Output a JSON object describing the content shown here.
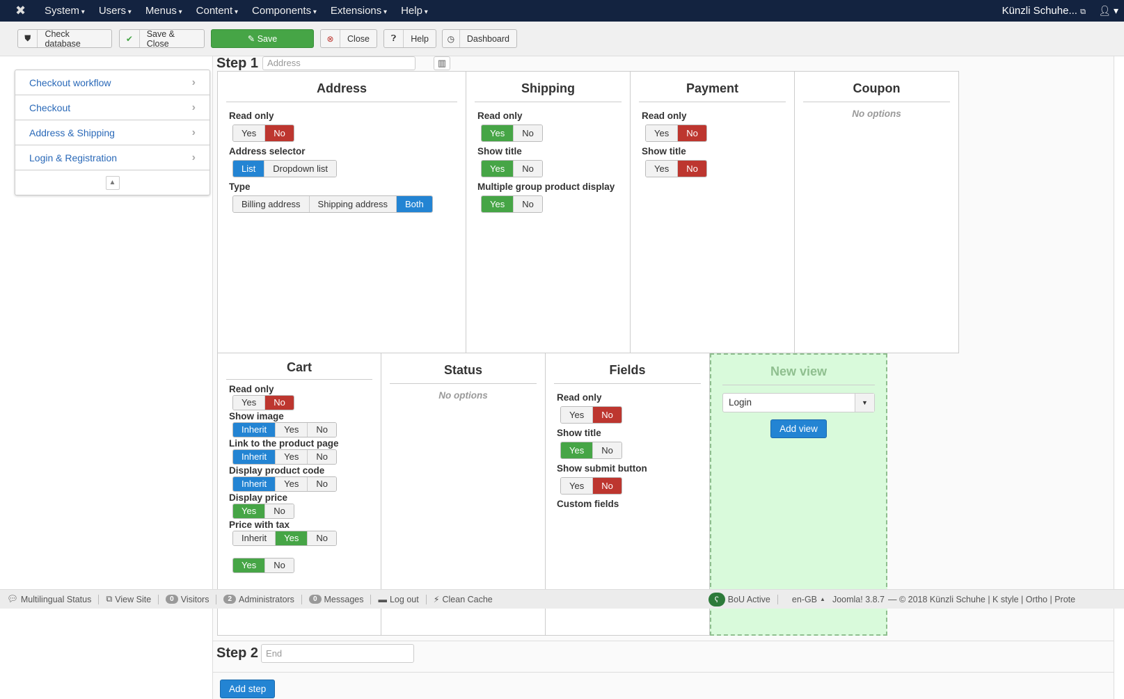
{
  "nav": {
    "menu": [
      "System",
      "Users",
      "Menus",
      "Content",
      "Components",
      "Extensions",
      "Help"
    ],
    "site": "Künzli Schuhe...",
    "site_icon": "external-link-icon",
    "user_icon": "user-icon"
  },
  "toolbar": {
    "check_database": "Check database",
    "save_close": "Save & Close",
    "save": "Save",
    "close": "Close",
    "help": "Help",
    "dashboard": "Dashboard"
  },
  "sidebar": {
    "items": [
      "Checkout workflow",
      "Checkout",
      "Address & Shipping",
      "Login & Registration"
    ]
  },
  "step1": {
    "label": "Step 1",
    "placeholder": "Address"
  },
  "cards": [
    {
      "title": "Address",
      "options": [
        {
          "label": "Read only",
          "buttons": [
            {
              "t": "Yes"
            },
            {
              "t": "No",
              "c": "red"
            }
          ]
        },
        {
          "label": "Address selector",
          "buttons": [
            {
              "t": "List",
              "c": "blue"
            },
            {
              "t": "Dropdown list"
            }
          ]
        },
        {
          "label": "Type",
          "buttons": [
            {
              "t": "Billing address"
            },
            {
              "t": "Shipping address"
            },
            {
              "t": "Both",
              "c": "blue"
            }
          ]
        }
      ]
    },
    {
      "title": "Shipping",
      "options": [
        {
          "label": "Read only",
          "buttons": [
            {
              "t": "Yes",
              "c": "green"
            },
            {
              "t": "No"
            }
          ]
        },
        {
          "label": "Show title",
          "buttons": [
            {
              "t": "Yes",
              "c": "green"
            },
            {
              "t": "No"
            }
          ]
        },
        {
          "label": "Multiple group product display",
          "buttons": [
            {
              "t": "Yes",
              "c": "green"
            },
            {
              "t": "No"
            }
          ]
        }
      ]
    },
    {
      "title": "Payment",
      "options": [
        {
          "label": "Read only",
          "buttons": [
            {
              "t": "Yes"
            },
            {
              "t": "No",
              "c": "red"
            }
          ]
        },
        {
          "label": "Show title",
          "buttons": [
            {
              "t": "Yes"
            },
            {
              "t": "No",
              "c": "red"
            }
          ]
        }
      ]
    },
    {
      "title": "Coupon",
      "no_options": "No options",
      "options": []
    },
    {
      "title": "Cart",
      "options": [
        {
          "label": "Read only",
          "buttons": [
            {
              "t": "Yes"
            },
            {
              "t": "No",
              "c": "red"
            }
          ]
        },
        {
          "label": "Show image",
          "buttons": [
            {
              "t": "Inherit",
              "c": "blue"
            },
            {
              "t": "Yes"
            },
            {
              "t": "No"
            }
          ]
        },
        {
          "label": "Link to the product page",
          "buttons": [
            {
              "t": "Inherit",
              "c": "blue"
            },
            {
              "t": "Yes"
            },
            {
              "t": "No"
            }
          ]
        },
        {
          "label": "Display product code",
          "buttons": [
            {
              "t": "Inherit",
              "c": "blue"
            },
            {
              "t": "Yes"
            },
            {
              "t": "No"
            }
          ]
        },
        {
          "label": "Display price",
          "buttons": [
            {
              "t": "Yes",
              "c": "green"
            },
            {
              "t": "No"
            }
          ]
        },
        {
          "label": "Price with tax",
          "buttons": [
            {
              "t": "Inherit"
            },
            {
              "t": "Yes",
              "c": "green"
            },
            {
              "t": "No"
            }
          ]
        },
        {
          "label": "",
          "buttons": [
            {
              "t": "Yes",
              "c": "green"
            },
            {
              "t": "No"
            }
          ]
        }
      ]
    },
    {
      "title": "Status",
      "no_options": "No options",
      "options": []
    },
    {
      "title": "Fields",
      "options": [
        {
          "label": "Read only",
          "buttons": [
            {
              "t": "Yes"
            },
            {
              "t": "No",
              "c": "red"
            }
          ]
        },
        {
          "label": "Show title",
          "buttons": [
            {
              "t": "Yes",
              "c": "green"
            },
            {
              "t": "No"
            }
          ]
        },
        {
          "label": "Show submit button",
          "buttons": [
            {
              "t": "Yes"
            },
            {
              "t": "No",
              "c": "red"
            }
          ]
        },
        {
          "label": "Custom fields",
          "buttons": []
        }
      ]
    }
  ],
  "new_view": {
    "title": "New view",
    "selected": "Login",
    "add_label": "Add view"
  },
  "status_bar": {
    "multilingual": "Multilingual Status",
    "view_site": "View Site",
    "visitors_count": "0",
    "visitors": "Visitors",
    "admins_count": "2",
    "admins": "Administrators",
    "messages_count": "0",
    "messages": "Messages",
    "logout": "Log out",
    "clean_cache": "Clean Cache",
    "bou": "BoU Active",
    "lang": "en-GB",
    "version": "Joomla! 3.8.7",
    "copyright": "— © 2018 Künzli Schuhe | K style | Ortho | Prote"
  },
  "step2": {
    "label": "Step 2",
    "placeholder": "End"
  },
  "add_step": "Add step",
  "colors": {
    "navbar": "#132340",
    "green": "#46a546",
    "red": "#bd362f",
    "blue": "#2384d3",
    "new_view_bg": "#d9fadb"
  }
}
